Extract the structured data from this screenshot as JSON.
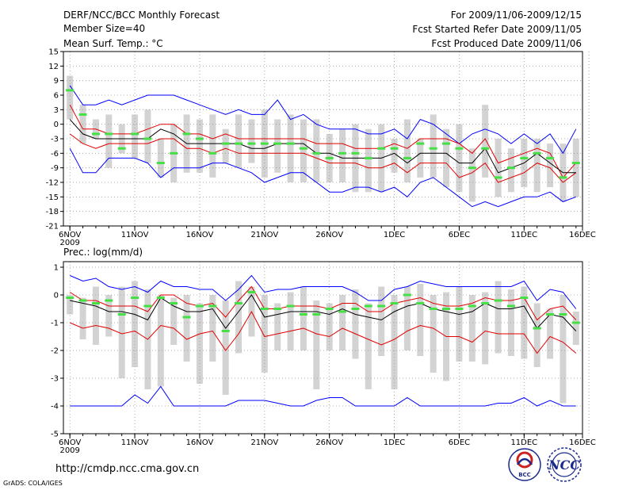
{
  "header": {
    "title": "DERF/NCC/BCC Monthly Forecast",
    "member_size": "Member Size=40",
    "variable": "Mean Surf. Temp.: °C",
    "period": "For 2009/11/06-2009/12/15",
    "started": "Fcst Started Refer Date 2009/11/05",
    "produced": "Fcst Produced Date 2009/11/06"
  },
  "footer": {
    "url": "http://cmdp.ncc.cma.gov.cn",
    "credit": "GrADS: COLA/IGES",
    "logo_left_text": "BCC",
    "logo_right_text": "NCC"
  },
  "colors": {
    "ensemble_max_min": "#0000ff",
    "ensemble_spread": "#e00000",
    "mean": "#000000",
    "members_bar": "#d3d3d3",
    "marker": "#44e044",
    "grid": "#999999"
  },
  "chart_data": [
    {
      "type": "line",
      "name": "temperature",
      "title": "Mean Surf. Temp.: °C",
      "ylabel": "°C",
      "ylim": [
        -21,
        15
      ],
      "yticks": [
        15,
        12,
        9,
        6,
        3,
        0,
        -3,
        -6,
        -9,
        -12,
        -15,
        -18,
        -21
      ],
      "x": [
        1,
        2,
        3,
        4,
        5,
        6,
        7,
        8,
        9,
        10,
        11,
        12,
        13,
        14,
        15,
        16,
        17,
        18,
        19,
        20,
        21,
        22,
        23,
        24,
        25,
        26,
        27,
        28,
        29,
        30,
        31,
        32,
        33,
        34,
        35,
        36,
        37,
        38,
        39,
        40
      ],
      "xlim": [
        0.5,
        40.5
      ],
      "xticks": [
        {
          "day": 1,
          "label": "6NOV"
        },
        {
          "day": 6,
          "label": "11NOV"
        },
        {
          "day": 11,
          "label": "16NOV"
        },
        {
          "day": 16,
          "label": "21NOV"
        },
        {
          "day": 21,
          "label": "26NOV"
        },
        {
          "day": 26,
          "label": "1DEC"
        },
        {
          "day": 31,
          "label": "6DEC"
        },
        {
          "day": 36,
          "label": "11DEC"
        },
        {
          "day": 41,
          "label": "16DEC"
        }
      ],
      "year_label": "2009",
      "series": [
        {
          "name": "max",
          "values": [
            8,
            4,
            4,
            5,
            4,
            5,
            6,
            6,
            6,
            5,
            4,
            3,
            2,
            3,
            2,
            2,
            5,
            1,
            2,
            0,
            -1,
            -1,
            -1,
            -2,
            -2,
            -1,
            -3,
            1,
            0,
            -2,
            -4,
            -2,
            -1,
            -2,
            -4,
            -2,
            -4,
            -2,
            -6,
            -1
          ]
        },
        {
          "name": "upper",
          "values": [
            4,
            -1,
            -1,
            -2,
            -2,
            -2,
            -1,
            0,
            0,
            -2,
            -2,
            -3,
            -2,
            -3,
            -3,
            -3,
            -3,
            -3,
            -3,
            -4,
            -4,
            -4,
            -5,
            -5,
            -5,
            -4,
            -5,
            -3,
            -3,
            -3,
            -4,
            -6,
            -3,
            -8,
            -7,
            -6,
            -5,
            -6,
            -11,
            -8
          ]
        },
        {
          "name": "mean",
          "values": [
            1,
            -2,
            -3,
            -3,
            -3,
            -3,
            -3,
            -1,
            -2,
            -4,
            -4,
            -4,
            -4,
            -4,
            -5,
            -5,
            -4,
            -4,
            -4,
            -6,
            -6,
            -7,
            -7,
            -7,
            -7,
            -6,
            -8,
            -6,
            -6,
            -6,
            -8,
            -8,
            -5,
            -10,
            -9,
            -8,
            -6,
            -8,
            -10,
            -10
          ]
        },
        {
          "name": "lower",
          "values": [
            -2,
            -4,
            -5,
            -4,
            -4,
            -4,
            -4,
            -3,
            -3,
            -5,
            -5,
            -6,
            -5,
            -6,
            -6,
            -6,
            -6,
            -6,
            -6,
            -7,
            -8,
            -8,
            -8,
            -9,
            -9,
            -8,
            -10,
            -8,
            -8,
            -8,
            -11,
            -10,
            -8,
            -12,
            -11,
            -10,
            -8,
            -9,
            -12,
            -10
          ]
        },
        {
          "name": "min",
          "values": [
            -5,
            -10,
            -10,
            -7,
            -7,
            -7,
            -8,
            -11,
            -9,
            -9,
            -9,
            -8,
            -8,
            -9,
            -10,
            -12,
            -11,
            -10,
            -10,
            -12,
            -14,
            -14,
            -13,
            -13,
            -14,
            -13,
            -15,
            -12,
            -11,
            -13,
            -15,
            -17,
            -16,
            -17,
            -16,
            -15,
            -15,
            -14,
            -16,
            -15
          ]
        },
        {
          "name": "ensemble_bar_top",
          "values": [
            10,
            4,
            1,
            2,
            0,
            2,
            3,
            -3,
            0,
            2,
            1,
            2,
            -1,
            2,
            1,
            3,
            1,
            2,
            1,
            1,
            -2,
            -1,
            0,
            -1,
            0,
            -3,
            1,
            -3,
            2,
            -1,
            0,
            -5,
            4,
            -3,
            -5,
            -3,
            -3,
            -4,
            -4,
            -3
          ]
        },
        {
          "name": "ensemble_bar_bottom",
          "values": [
            1,
            -4,
            -3,
            -9,
            -6,
            -7,
            -8,
            -11,
            -12,
            -10,
            -10,
            -11,
            -8,
            -9,
            -8,
            -11,
            -10,
            -12,
            -12,
            -12,
            -12,
            -12,
            -14,
            -14,
            -14,
            -10,
            -12,
            -11,
            -11,
            -13,
            -14,
            -16,
            -11,
            -15,
            -14,
            -13,
            -14,
            -13,
            -16,
            -15
          ]
        },
        {
          "name": "observed_marker",
          "values": [
            7,
            2,
            -2,
            -2,
            -5,
            -2,
            -3,
            -8,
            -6,
            -2,
            -3,
            -6,
            -4,
            -4,
            -4,
            -4,
            -4,
            -4,
            -5,
            -6,
            -7,
            -6,
            -6,
            -7,
            -5,
            -5,
            -7,
            -4,
            -5,
            -4,
            -5,
            -9,
            -5,
            -11,
            -9,
            -7,
            -6,
            -7,
            -11,
            -8
          ]
        }
      ]
    },
    {
      "type": "line",
      "name": "precipitation",
      "title": "Prec.: log(mm/d)",
      "ylabel": "log(mm/d)",
      "ylim": [
        -5,
        1.2
      ],
      "yticks": [
        1,
        0,
        -1,
        -2,
        -3,
        -4,
        -5
      ],
      "x": [
        1,
        2,
        3,
        4,
        5,
        6,
        7,
        8,
        9,
        10,
        11,
        12,
        13,
        14,
        15,
        16,
        17,
        18,
        19,
        20,
        21,
        22,
        23,
        24,
        25,
        26,
        27,
        28,
        29,
        30,
        31,
        32,
        33,
        34,
        35,
        36,
        37,
        38,
        39,
        40
      ],
      "xlim": [
        0.5,
        40.5
      ],
      "xticks": [
        {
          "day": 1,
          "label": "6NOV"
        },
        {
          "day": 6,
          "label": "11NOV"
        },
        {
          "day": 11,
          "label": "16NOV"
        },
        {
          "day": 16,
          "label": "21NOV"
        },
        {
          "day": 21,
          "label": "26NOV"
        },
        {
          "day": 26,
          "label": "1DEC"
        },
        {
          "day": 31,
          "label": "6DEC"
        },
        {
          "day": 36,
          "label": "11DEC"
        },
        {
          "day": 41,
          "label": "16DEC"
        }
      ],
      "year_label": "2009",
      "series": [
        {
          "name": "max",
          "values": [
            0.7,
            0.5,
            0.6,
            0.3,
            0.2,
            0.3,
            0.1,
            0.5,
            0.3,
            0.3,
            0.2,
            0.2,
            -0.2,
            0.2,
            0.7,
            0.1,
            0.2,
            0.2,
            0.3,
            0.3,
            0.3,
            0.3,
            0.1,
            -0.2,
            -0.2,
            0.2,
            0.3,
            0.5,
            0.4,
            0.3,
            0.3,
            0.3,
            0.3,
            0.3,
            0.3,
            0.5,
            -0.2,
            0.2,
            0.1,
            -0.5
          ]
        },
        {
          "name": "upper",
          "values": [
            0.1,
            -0.2,
            -0.2,
            -0.4,
            -0.4,
            -0.4,
            -0.6,
            0.0,
            0.0,
            -0.3,
            -0.4,
            -0.3,
            -0.8,
            -0.2,
            0.3,
            -0.5,
            -0.5,
            -0.4,
            -0.4,
            -0.4,
            -0.5,
            -0.3,
            -0.3,
            -0.6,
            -0.6,
            -0.3,
            -0.2,
            -0.1,
            -0.3,
            -0.4,
            -0.4,
            -0.3,
            -0.1,
            -0.2,
            -0.2,
            -0.1,
            -0.9,
            -0.5,
            -0.4,
            -0.9
          ]
        },
        {
          "name": "mean",
          "values": [
            -0.2,
            -0.3,
            -0.4,
            -0.6,
            -0.6,
            -0.7,
            -0.9,
            -0.1,
            -0.4,
            -0.6,
            -0.6,
            -0.5,
            -1.2,
            -0.6,
            0.0,
            -0.8,
            -0.7,
            -0.6,
            -0.6,
            -0.6,
            -0.7,
            -0.5,
            -0.7,
            -0.8,
            -0.9,
            -0.6,
            -0.4,
            -0.3,
            -0.5,
            -0.6,
            -0.7,
            -0.6,
            -0.3,
            -0.5,
            -0.5,
            -0.4,
            -1.2,
            -0.7,
            -0.8,
            -1.3
          ]
        },
        {
          "name": "lower",
          "values": [
            -1.0,
            -1.2,
            -1.1,
            -1.2,
            -1.4,
            -1.3,
            -1.6,
            -1.1,
            -1.2,
            -1.6,
            -1.4,
            -1.3,
            -2.0,
            -1.4,
            -0.6,
            -1.5,
            -1.4,
            -1.3,
            -1.2,
            -1.4,
            -1.5,
            -1.2,
            -1.4,
            -1.6,
            -1.8,
            -1.6,
            -1.3,
            -1.1,
            -1.2,
            -1.5,
            -1.5,
            -1.7,
            -1.3,
            -1.4,
            -1.4,
            -1.4,
            -2.1,
            -1.5,
            -1.7,
            -2.1
          ]
        },
        {
          "name": "min",
          "values": [
            -4.0,
            -4.0,
            -4.0,
            -4.0,
            -4.0,
            -3.6,
            -3.9,
            -3.3,
            -4.0,
            -4.0,
            -4.0,
            -4.0,
            -4.0,
            -3.8,
            -3.8,
            -3.8,
            -3.9,
            -4.0,
            -4.0,
            -3.8,
            -3.7,
            -3.7,
            -4.0,
            -4.0,
            -4.0,
            -4.0,
            -3.7,
            -4.0,
            -4.0,
            -4.0,
            -4.0,
            -4.0,
            -4.0,
            -3.9,
            -3.9,
            -3.7,
            -4.0,
            -3.8,
            -4.0,
            -4.0
          ]
        },
        {
          "name": "ensemble_bar_top",
          "values": [
            0.0,
            -0.1,
            0.3,
            0.0,
            0.3,
            0.5,
            0.2,
            0.0,
            -0.1,
            0.0,
            -0.3,
            0.0,
            -0.2,
            0.5,
            0.3,
            0.0,
            -0.3,
            0.1,
            0.3,
            -0.2,
            -0.3,
            0.0,
            0.2,
            -0.3,
            0.3,
            0.0,
            0.3,
            0.4,
            0.0,
            0.1,
            0.3,
            0.0,
            0.1,
            0.5,
            0.2,
            0.3,
            -0.3,
            -0.5,
            0.0,
            -0.6
          ]
        },
        {
          "name": "ensemble_bar_bottom",
          "values": [
            -0.7,
            -1.6,
            -1.8,
            -1.5,
            -3.0,
            -2.6,
            -3.4,
            -3.3,
            -1.8,
            -2.4,
            -3.2,
            -2.4,
            -3.6,
            -2.1,
            -1.5,
            -2.8,
            -2.0,
            -2.0,
            -2.0,
            -3.4,
            -2.0,
            -2.0,
            -2.3,
            -3.4,
            -2.2,
            -3.4,
            -2.0,
            -2.2,
            -2.8,
            -3.1,
            -2.4,
            -2.4,
            -2.5,
            -2.1,
            -2.2,
            -2.3,
            -2.6,
            -2.3,
            -3.9,
            -1.8
          ]
        },
        {
          "name": "observed_marker",
          "values": [
            -0.1,
            -0.2,
            -0.3,
            -0.2,
            -0.7,
            -0.1,
            -0.4,
            -0.1,
            -0.3,
            -0.8,
            -0.4,
            -0.4,
            -1.3,
            -0.3,
            0.1,
            -0.5,
            -0.5,
            -0.4,
            -0.7,
            -0.7,
            -0.5,
            -0.6,
            -0.5,
            -0.4,
            -0.4,
            -0.3,
            0.0,
            -0.3,
            -0.5,
            -0.5,
            -0.5,
            -0.4,
            -0.3,
            -0.2,
            -0.4,
            -0.1,
            -1.2,
            -0.7,
            -0.7,
            -1.0
          ]
        }
      ]
    }
  ]
}
